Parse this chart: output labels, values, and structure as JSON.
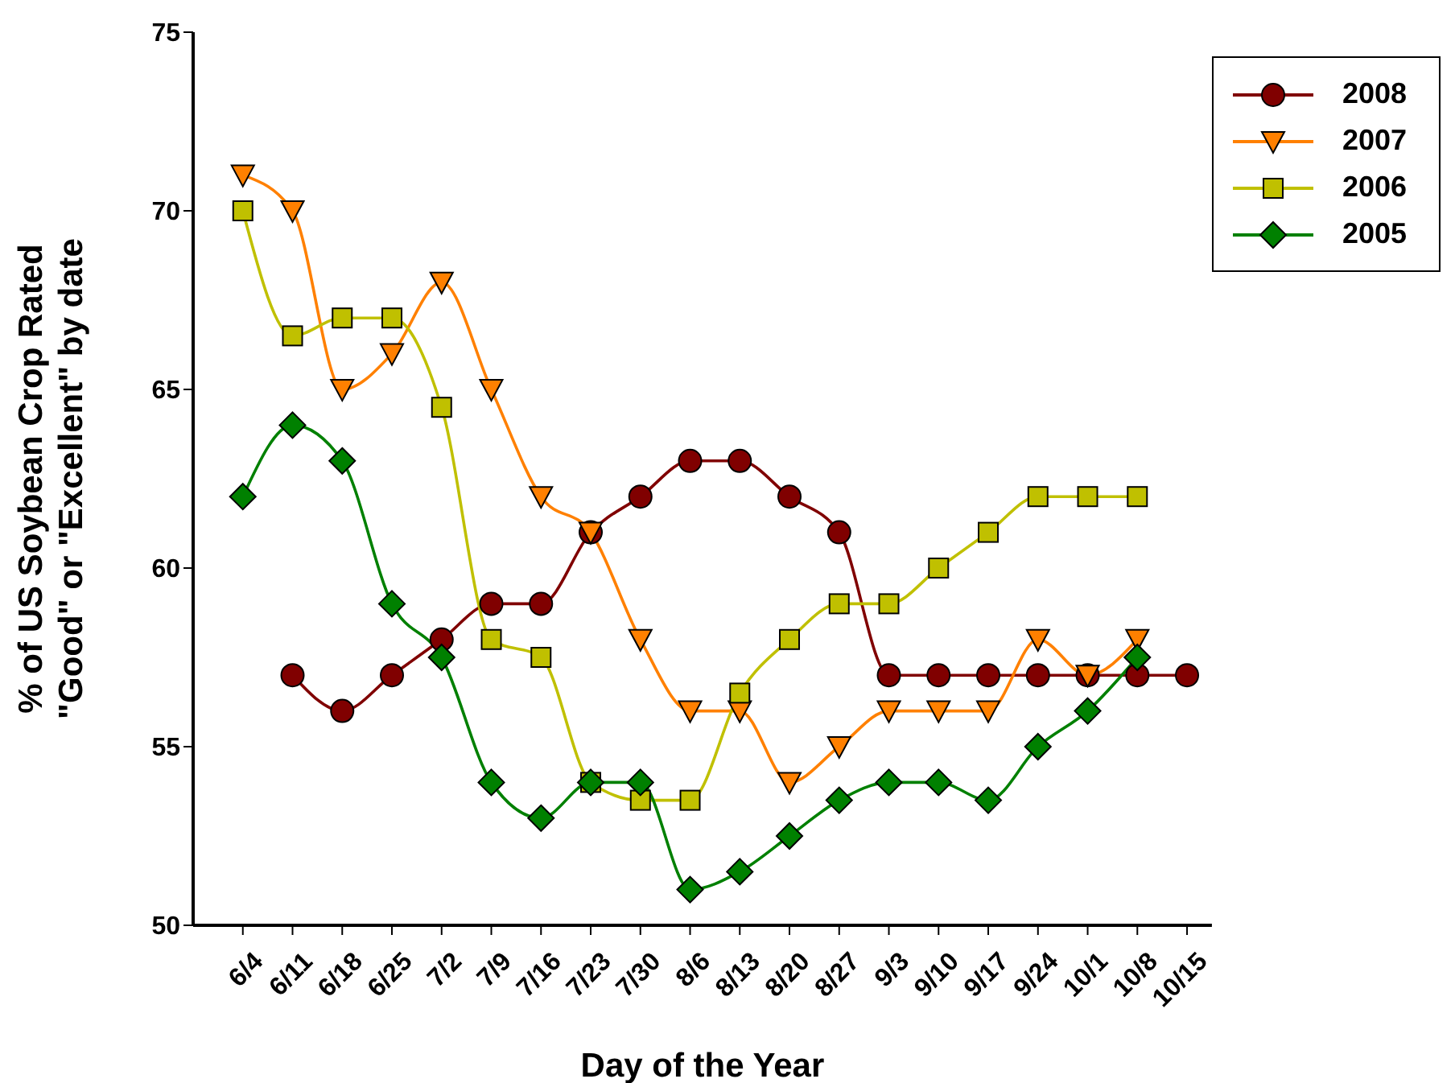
{
  "chart_data": {
    "type": "line",
    "xlabel": "Day of the Year",
    "ylabel": "% of US Soybean Crop Rated\n\"Good\" or \"Excellent\" by date",
    "categories": [
      "6/4",
      "6/11",
      "6/18",
      "6/25",
      "7/2",
      "7/9",
      "7/16",
      "7/23",
      "7/30",
      "8/6",
      "8/13",
      "8/20",
      "8/27",
      "9/3",
      "9/10",
      "9/17",
      "9/24",
      "10/1",
      "10/8",
      "10/15"
    ],
    "series": [
      {
        "name": "2008",
        "color": "#800000",
        "marker": "circle",
        "values": [
          null,
          57,
          56,
          57,
          58,
          59,
          59,
          61,
          62,
          63,
          63,
          62,
          61,
          57,
          57,
          57,
          57,
          57,
          57,
          57
        ]
      },
      {
        "name": "2007",
        "color": "#ff8000",
        "marker": "triangle",
        "values": [
          71,
          70,
          65,
          66,
          68,
          65,
          62,
          61,
          58,
          56,
          56,
          54,
          55,
          56,
          56,
          56,
          58,
          57,
          58,
          null
        ]
      },
      {
        "name": "2006",
        "color": "#c0c000",
        "marker": "square",
        "values": [
          70,
          66.5,
          67,
          67,
          64.5,
          58,
          57.5,
          54,
          53.5,
          53.5,
          56.5,
          58,
          59,
          59,
          60,
          61,
          62,
          62,
          62,
          null
        ]
      },
      {
        "name": "2005",
        "color": "#008000",
        "marker": "diamond",
        "values": [
          62,
          64,
          63,
          59,
          57.5,
          54,
          53,
          54,
          54,
          51,
          51.5,
          52.5,
          53.5,
          54,
          54,
          53.5,
          55,
          56,
          57.5,
          null
        ]
      }
    ],
    "ylim": [
      50,
      75
    ],
    "yticks": [
      50,
      55,
      60,
      65,
      70,
      75
    ],
    "grid": false,
    "legend": "top right",
    "line_style": "solid"
  }
}
